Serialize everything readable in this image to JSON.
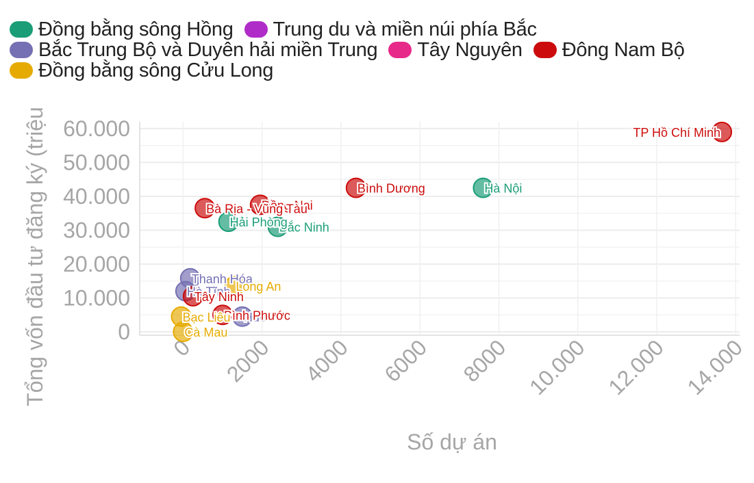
{
  "legend": [
    [
      {
        "name": "Đồng bằng sông Hồng",
        "color": "#1b9e77"
      },
      {
        "name": "Trung du và miền núi phía Bắc",
        "color": "#b02cc8"
      }
    ],
    [
      {
        "name": "Bắc Trung Bộ và Duyên hải miền Trung",
        "color": "#7570b3"
      },
      {
        "name": "Tây Nguyên",
        "color": "#e7298a"
      },
      {
        "name": "Đông Nam Bộ",
        "color": "#cc0c0c"
      }
    ],
    [
      {
        "name": "Đồng bằng sông Cửu Long",
        "color": "#e6ab02"
      }
    ]
  ],
  "chart_data": {
    "type": "scatter",
    "xlabel": "Số dự án",
    "ylabel": "Tổng vốn đầu tư đăng ký (triệu",
    "xlim": [
      -1100,
      14100
    ],
    "ylim": [
      -1000,
      62000
    ],
    "x_ticks": [
      0,
      2000,
      4000,
      6000,
      8000,
      10000,
      12000,
      14000
    ],
    "x_tick_labels": [
      "0",
      "2000",
      "4000",
      "6000",
      "8000",
      "10.000",
      "12.000",
      "14.000"
    ],
    "y_ticks": [
      0,
      10000,
      20000,
      30000,
      40000,
      50000,
      60000
    ],
    "y_tick_labels": [
      "0",
      "10.000",
      "20.000",
      "30.000",
      "40.000",
      "50.000",
      "60.000"
    ],
    "grid": true,
    "legend_position": "top-left",
    "series": [
      {
        "name": "Đồng bằng sông Hồng",
        "color": "#1b9e77",
        "points": [
          {
            "x": 7600,
            "y": 42500,
            "label": "Hà Nội"
          },
          {
            "x": 2400,
            "y": 31000,
            "label": "Bắc Ninh"
          },
          {
            "x": 1150,
            "y": 32500,
            "label": "Hải Phòng"
          }
        ]
      },
      {
        "name": "Trung du và miền núi phía Bắc",
        "color": "#b02cc8",
        "points": []
      },
      {
        "name": "Bắc Trung Bộ và Duyên hải miền Trung",
        "color": "#7570b3",
        "points": [
          {
            "x": 180,
            "y": 15800,
            "label": "Thanh Hóa"
          },
          {
            "x": 60,
            "y": 12000,
            "label": "Hà Tĩnh"
          },
          {
            "x": 1500,
            "y": 4500,
            "label": "Huế"
          }
        ]
      },
      {
        "name": "Tây Nguyên",
        "color": "#e7298a",
        "points": []
      },
      {
        "name": "Đông Nam Bộ",
        "color": "#cc0c0c",
        "points": [
          {
            "x": 13650,
            "y": 59000,
            "label": "TP Hồ Chí Minh"
          },
          {
            "x": 4380,
            "y": 42500,
            "label": "Bình Dương"
          },
          {
            "x": 1950,
            "y": 37500,
            "label": "Đồng Nai"
          },
          {
            "x": 550,
            "y": 36500,
            "label": "Bà Rịa - Vũng Tàu"
          },
          {
            "x": 250,
            "y": 10500,
            "label": "Tây Ninh"
          },
          {
            "x": 1000,
            "y": 5000,
            "label": "Bình Phước"
          }
        ]
      },
      {
        "name": "Đồng bằng sông Cửu Long",
        "color": "#e6ab02",
        "points": [
          {
            "x": 1300,
            "y": 13500,
            "label": "Long An"
          },
          {
            "x": -50,
            "y": 4500,
            "label": "Bạc Liêu"
          },
          {
            "x": 0,
            "y": 0,
            "label": "Cà Mau"
          }
        ]
      }
    ]
  }
}
